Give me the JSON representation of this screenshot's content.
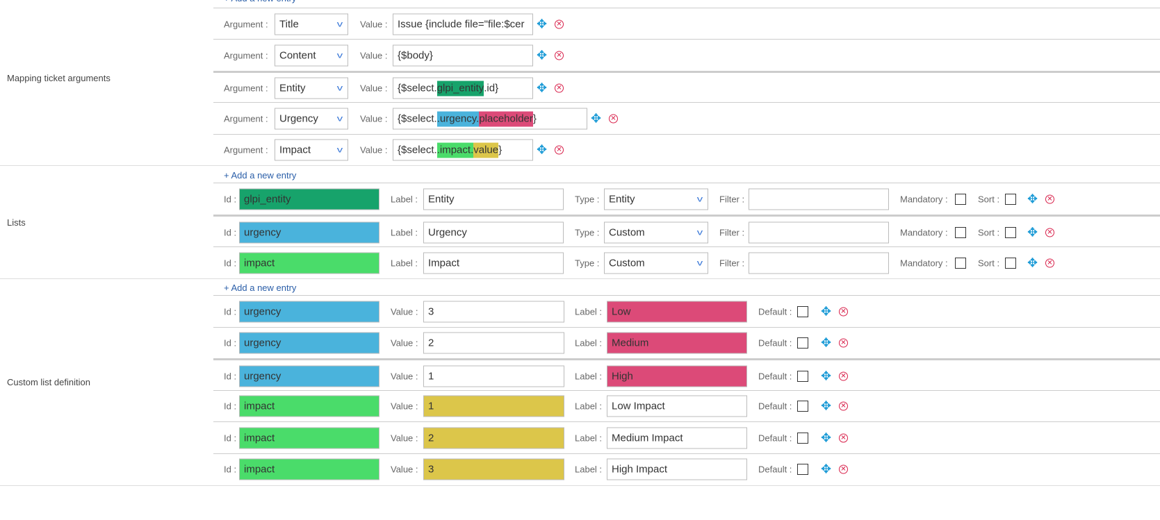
{
  "colors": {
    "dark_green": "#17a36b",
    "blue": "#4ab3dc",
    "pink": "#dc4a78",
    "green": "#4adc6a",
    "yellow": "#dcc64a"
  },
  "common": {
    "add_entry": "+ Add a new entry",
    "argument": "Argument :",
    "value": "Value :",
    "id": "Id :",
    "label": "Label :",
    "type": "Type :",
    "filter": "Filter :",
    "mandatory": "Mandatory :",
    "sort": "Sort :",
    "default": "Default :"
  },
  "mapping": {
    "title": "Mapping ticket arguments",
    "rows": [
      {
        "argument": "Title",
        "value": [
          {
            "t": "Issue {include file=\"file:$cer"
          }
        ]
      },
      {
        "argument": "Content",
        "value": [
          {
            "t": "{$body}"
          }
        ]
      },
      {
        "argument": "Entity",
        "value": [
          {
            "t": "{$select."
          },
          {
            "t": "glpi_entity",
            "c": "dark_green"
          },
          {
            "t": ".id}"
          }
        ]
      },
      {
        "argument": "Urgency",
        "value": [
          {
            "t": "{$select."
          },
          {
            "t": ".urgency.",
            "c": "blue"
          },
          {
            "t": "placeholder",
            "c": "pink"
          },
          {
            "t": "}"
          }
        ]
      },
      {
        "argument": "Impact",
        "value": [
          {
            "t": "{$select."
          },
          {
            "t": ".impact.",
            "c": "green"
          },
          {
            "t": "value",
            "c": "yellow"
          },
          {
            "t": "}"
          }
        ]
      }
    ]
  },
  "lists": {
    "title": "Lists",
    "rows": [
      {
        "id": "glpi_entity",
        "id_color": "dark_green",
        "label": "Entity",
        "type": "Entity",
        "filter": "",
        "mandatory": false,
        "sort": false
      },
      {
        "id": "urgency",
        "id_color": "blue",
        "label": "Urgency",
        "type": "Custom",
        "filter": "",
        "mandatory": false,
        "sort": false
      },
      {
        "id": "impact",
        "id_color": "green",
        "label": "Impact",
        "type": "Custom",
        "filter": "",
        "mandatory": false,
        "sort": false
      }
    ]
  },
  "custom": {
    "title": "Custom list definition",
    "rows": [
      {
        "id": "urgency",
        "id_color": "blue",
        "value": "3",
        "label": "Low",
        "label_color": "pink",
        "default": false
      },
      {
        "id": "urgency",
        "id_color": "blue",
        "value": "2",
        "label": "Medium",
        "label_color": "pink",
        "default": false
      },
      {
        "id": "urgency",
        "id_color": "blue",
        "value": "1",
        "label": "High",
        "label_color": "pink",
        "default": false
      },
      {
        "id": "impact",
        "id_color": "green",
        "value": "1",
        "value_color": "yellow",
        "label": "Low Impact",
        "default": false
      },
      {
        "id": "impact",
        "id_color": "green",
        "value": "2",
        "value_color": "yellow",
        "label": "Medium Impact",
        "default": false
      },
      {
        "id": "impact",
        "id_color": "green",
        "value": "3",
        "value_color": "yellow",
        "label": "High Impact",
        "default": false
      }
    ]
  }
}
